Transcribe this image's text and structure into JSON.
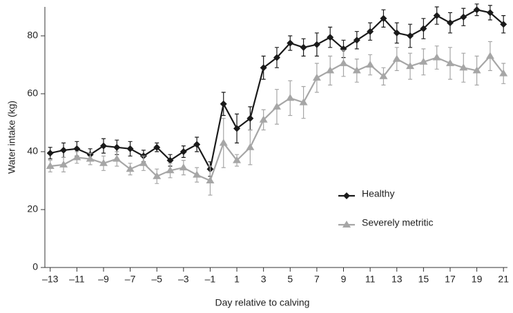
{
  "chart_data": {
    "type": "line",
    "xlabel": "Day relative to calving",
    "ylabel": "Water intake (kg)",
    "x": [
      -13,
      -12,
      -11,
      -10,
      -9,
      -8,
      -7,
      -6,
      -5,
      -4,
      -3,
      -2,
      -1,
      0,
      1,
      2,
      3,
      4,
      5,
      6,
      7,
      8,
      9,
      10,
      11,
      12,
      13,
      14,
      15,
      16,
      17,
      18,
      19,
      20,
      21
    ],
    "series": [
      {
        "name": "Healthy",
        "color": "#1a1a1a",
        "marker": "diamond",
        "values": [
          39.5,
          40.5,
          41,
          39,
          42,
          41.5,
          41,
          38.5,
          41.5,
          37,
          40,
          42.5,
          34,
          56.5,
          48,
          51.5,
          69,
          72.5,
          77.5,
          76,
          77,
          79.5,
          75.5,
          78.5,
          81.5,
          86,
          81,
          80,
          82.5,
          87,
          84.5,
          86.5,
          89,
          88,
          84
        ],
        "errors": [
          2,
          2.5,
          2.5,
          2,
          2.5,
          2.5,
          2.5,
          2,
          1.5,
          2,
          2,
          2.5,
          2.5,
          4,
          5,
          4,
          4,
          3.5,
          2.5,
          3,
          4,
          3.5,
          3,
          3,
          3,
          3,
          3.5,
          4,
          3.5,
          3,
          3.5,
          3,
          2,
          2.5,
          3
        ]
      },
      {
        "name": "Severely metritic",
        "color": "#a6a6a6",
        "marker": "triangle",
        "values": [
          35,
          35.5,
          38,
          37.5,
          36,
          37.5,
          34,
          36,
          31.5,
          33.5,
          34.5,
          32,
          30,
          43,
          37,
          41.5,
          51,
          55.5,
          58.5,
          57,
          65.5,
          68,
          70.5,
          68,
          70,
          66,
          72,
          69.5,
          71,
          72.5,
          70.5,
          69,
          68,
          73,
          67
        ],
        "errors": [
          2,
          2.5,
          2,
          2,
          2.5,
          2.5,
          2,
          2.5,
          2.5,
          2.5,
          2.5,
          2.5,
          5,
          8.5,
          2,
          6,
          3.5,
          6,
          6,
          5.5,
          5,
          5,
          4.5,
          4,
          3.5,
          3,
          4,
          4.5,
          4.5,
          4,
          5.5,
          5,
          5,
          5,
          3.5
        ]
      }
    ],
    "xlim": [
      -13.4,
      21.3
    ],
    "ylim": [
      0,
      90
    ],
    "xticks": [
      {
        "value": -13,
        "label": "–13"
      },
      {
        "value": -11,
        "label": "–11"
      },
      {
        "value": -9,
        "label": "–9"
      },
      {
        "value": -7,
        "label": "–7"
      },
      {
        "value": -5,
        "label": "–5"
      },
      {
        "value": -3,
        "label": "–3"
      },
      {
        "value": -1,
        "label": "–1"
      },
      1,
      3,
      5,
      7,
      9,
      11,
      13,
      15,
      17,
      19,
      21
    ],
    "yticks": [
      0,
      20,
      40,
      60,
      80
    ],
    "legend": "center right",
    "grid": false
  }
}
